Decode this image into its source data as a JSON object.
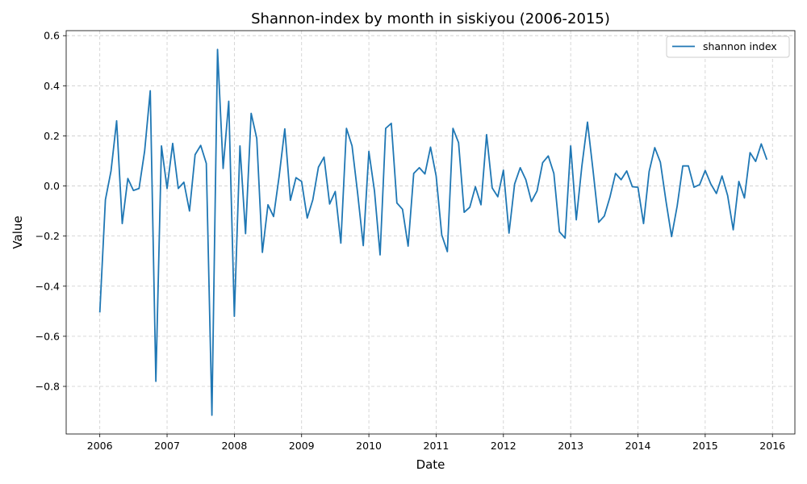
{
  "chart_data": {
    "type": "line",
    "title": "Shannon-index by month in siskiyou (2006-2015)",
    "xlabel": "Date",
    "ylabel": "Value",
    "xlim": [
      "2005-07",
      "2016-05"
    ],
    "ylim": [
      -0.99,
      0.62
    ],
    "x_ticks": [
      "2006",
      "2007",
      "2008",
      "2009",
      "2010",
      "2011",
      "2012",
      "2013",
      "2014",
      "2015",
      "2016"
    ],
    "y_ticks": [
      -0.8,
      -0.6,
      -0.4,
      -0.2,
      0.0,
      0.2,
      0.4,
      0.6
    ],
    "y_tick_labels": [
      "−0.8",
      "−0.6",
      "−0.4",
      "−0.2",
      "0.0",
      "0.2",
      "0.4",
      "0.6"
    ],
    "grid": true,
    "legend_position": "top-right",
    "x": [
      "2006-01",
      "2006-02",
      "2006-03",
      "2006-04",
      "2006-05",
      "2006-06",
      "2006-07",
      "2006-08",
      "2006-09",
      "2006-10",
      "2006-11",
      "2006-12",
      "2007-01",
      "2007-02",
      "2007-03",
      "2007-04",
      "2007-05",
      "2007-06",
      "2007-07",
      "2007-08",
      "2007-09",
      "2007-10",
      "2007-11",
      "2007-12",
      "2008-01",
      "2008-02",
      "2008-03",
      "2008-04",
      "2008-05",
      "2008-06",
      "2008-07",
      "2008-08",
      "2008-09",
      "2008-10",
      "2008-11",
      "2008-12",
      "2009-01",
      "2009-02",
      "2009-03",
      "2009-04",
      "2009-05",
      "2009-06",
      "2009-07",
      "2009-08",
      "2009-09",
      "2009-10",
      "2009-11",
      "2009-12",
      "2010-01",
      "2010-02",
      "2010-03",
      "2010-04",
      "2010-05",
      "2010-06",
      "2010-07",
      "2010-08",
      "2010-09",
      "2010-10",
      "2010-11",
      "2010-12",
      "2011-01",
      "2011-02",
      "2011-03",
      "2011-04",
      "2011-05",
      "2011-06",
      "2011-07",
      "2011-08",
      "2011-09",
      "2011-10",
      "2011-11",
      "2011-12",
      "2012-01",
      "2012-02",
      "2012-03",
      "2012-04",
      "2012-05",
      "2012-06",
      "2012-07",
      "2012-08",
      "2012-09",
      "2012-10",
      "2012-11",
      "2012-12",
      "2013-01",
      "2013-02",
      "2013-03",
      "2013-04",
      "2013-05",
      "2013-06",
      "2013-07",
      "2013-08",
      "2013-09",
      "2013-10",
      "2013-11",
      "2013-12",
      "2014-01",
      "2014-02",
      "2014-03",
      "2014-04",
      "2014-05",
      "2014-06",
      "2014-07",
      "2014-08",
      "2014-09",
      "2014-10",
      "2014-11",
      "2014-12",
      "2015-01",
      "2015-02",
      "2015-03",
      "2015-04",
      "2015-05",
      "2015-06",
      "2015-07",
      "2015-08",
      "2015-09",
      "2015-10",
      "2015-11",
      "2015-12"
    ],
    "series": [
      {
        "name": "shannon index",
        "color": "#1f77b4",
        "values": [
          -0.505,
          -0.055,
          0.06,
          0.26,
          -0.15,
          0.03,
          -0.018,
          -0.01,
          0.14,
          0.38,
          -0.78,
          0.16,
          -0.01,
          0.17,
          -0.01,
          0.015,
          -0.1,
          0.125,
          0.162,
          0.09,
          -0.915,
          0.545,
          0.07,
          0.338,
          -0.52,
          0.16,
          -0.19,
          0.29,
          0.19,
          -0.265,
          -0.075,
          -0.122,
          0.04,
          0.228,
          -0.057,
          0.033,
          0.018,
          -0.128,
          -0.055,
          0.075,
          0.115,
          -0.072,
          -0.022,
          -0.228,
          0.23,
          0.16,
          -0.03,
          -0.238,
          0.138,
          -0.02,
          -0.275,
          0.23,
          0.25,
          -0.068,
          -0.093,
          -0.24,
          0.05,
          0.073,
          0.048,
          0.155,
          0.04,
          -0.195,
          -0.262,
          0.23,
          0.173,
          -0.105,
          -0.085,
          -0.003,
          -0.075,
          0.205,
          -0.008,
          -0.043,
          0.063,
          -0.188,
          0.008,
          0.073,
          0.025,
          -0.062,
          -0.02,
          0.093,
          0.12,
          0.05,
          -0.183,
          -0.208,
          0.16,
          -0.135,
          0.08,
          0.255,
          0.06,
          -0.145,
          -0.12,
          -0.045,
          0.05,
          0.025,
          0.06,
          -0.003,
          -0.005,
          -0.15,
          0.058,
          0.153,
          0.095,
          -0.06,
          -0.202,
          -0.08,
          0.08,
          0.08,
          -0.005,
          0.005,
          0.062,
          0.008,
          -0.03,
          0.04,
          -0.038,
          -0.175,
          0.018,
          -0.048,
          0.133,
          0.098,
          0.168,
          0.105
        ]
      }
    ]
  }
}
